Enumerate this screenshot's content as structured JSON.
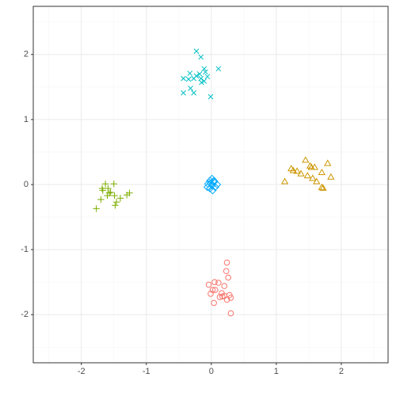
{
  "chart_data": {
    "type": "scatter",
    "xlim": [
      -2.74,
      2.72
    ],
    "ylim": [
      -2.74,
      2.74
    ],
    "xticks": [
      -2,
      -1,
      0,
      1,
      2
    ],
    "yticks": [
      -2,
      -1,
      0,
      1,
      2
    ],
    "x_minor_ticks": [
      -2.5,
      -1.5,
      -0.5,
      0.5,
      1.5,
      2.5
    ],
    "y_minor_ticks": [
      -2.5,
      -1.5,
      -0.5,
      0.5,
      1.5,
      2.5
    ],
    "grid": true,
    "series": [
      {
        "color": "#F8766D",
        "shape": "circle",
        "x": [
          0.24,
          0.23,
          0.26,
          0.05,
          -0.04,
          0.11,
          0.2,
          0.06,
          0.02,
          0.16,
          0.28,
          0.2,
          0.3,
          0.24,
          0.13,
          0.04,
          0.3,
          -0.01,
          0.17
        ],
        "values": [
          -1.2,
          -1.33,
          -1.43,
          -1.5,
          -1.54,
          -1.51,
          -1.56,
          -1.62,
          -1.62,
          -1.67,
          -1.7,
          -1.71,
          -1.74,
          -1.77,
          -1.73,
          -1.82,
          -1.98,
          -1.68,
          -1.72
        ]
      },
      {
        "color": "#CD9600",
        "shape": "triangle",
        "x": [
          1.13,
          1.26,
          1.32,
          1.23,
          1.45,
          1.52,
          1.59,
          1.38,
          1.48,
          1.56,
          1.62,
          1.7,
          1.79,
          1.84,
          1.72,
          1.7,
          1.54
        ],
        "values": [
          0.04,
          0.21,
          0.2,
          0.24,
          0.37,
          0.28,
          0.26,
          0.16,
          0.13,
          0.09,
          0.04,
          0.18,
          0.32,
          0.11,
          -0.06,
          -0.05,
          0.26
        ]
      },
      {
        "color": "#7CAE00",
        "shape": "plus",
        "x": [
          -1.77,
          -1.7,
          -1.67,
          -1.63,
          -1.68,
          -1.59,
          -1.57,
          -1.6,
          -1.5,
          -1.49,
          -1.46,
          -1.48,
          -1.4,
          -1.3,
          -1.26,
          -1.55
        ],
        "values": [
          -0.37,
          -0.23,
          -0.09,
          0.01,
          -0.06,
          -0.06,
          -0.13,
          -0.17,
          0.01,
          -0.17,
          -0.27,
          -0.32,
          -0.21,
          -0.16,
          -0.13,
          -0.12
        ]
      },
      {
        "color": "#00BFC4",
        "shape": "cross",
        "x": [
          -0.23,
          -0.16,
          -0.11,
          -0.33,
          -0.23,
          -0.43,
          -0.35,
          -0.27,
          -0.16,
          -0.11,
          -0.06,
          0.11,
          -0.32,
          -0.43,
          -0.27,
          -0.15,
          -0.01,
          -0.18,
          -0.09
        ],
        "values": [
          2.05,
          1.96,
          1.78,
          1.71,
          1.67,
          1.63,
          1.62,
          1.63,
          1.63,
          1.59,
          1.66,
          1.78,
          1.48,
          1.41,
          1.41,
          1.57,
          1.35,
          1.7,
          1.73
        ]
      },
      {
        "color": "#00A9FF",
        "shape": "diamond",
        "x": [
          -0.02,
          0.01,
          0.04,
          -0.05,
          0.01,
          0.06,
          -0.02,
          -0.06,
          0.09,
          0.02,
          -0.01,
          0.04
        ],
        "values": [
          0.06,
          0.09,
          0.04,
          0.01,
          -0.01,
          -0.04,
          -0.06,
          -0.04,
          0.0,
          -0.09,
          0.02,
          0.06
        ]
      }
    ]
  }
}
